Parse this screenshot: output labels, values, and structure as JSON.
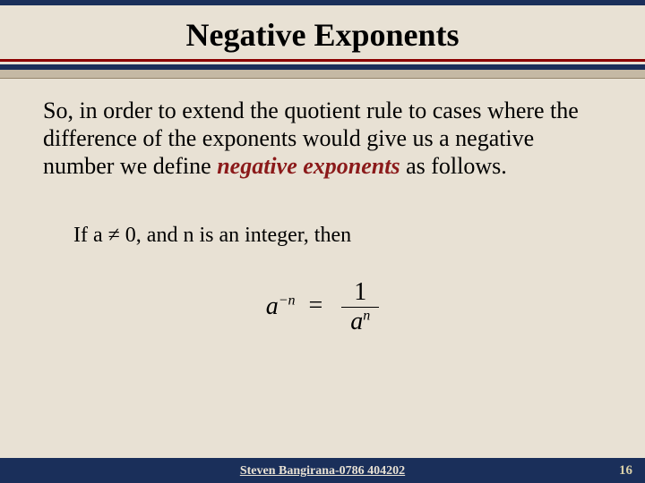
{
  "colors": {
    "background": "#e8e1d4",
    "navy": "#1a2f5a",
    "darkred": "#8b0000",
    "emphasis": "#8b1a1a",
    "band": "#c5b9a4",
    "page_number": "#d8cfa8"
  },
  "header": {
    "title": "Negative Exponents"
  },
  "body": {
    "para_part1": "So, in order to extend the quotient rule to cases where the difference of the exponents would give us a negative number we define ",
    "emphasis": "negative exponents",
    "para_part2": " as follows.",
    "condition": "If a ≠ 0, and n is an integer, then",
    "formula": {
      "lhs_base": "a",
      "lhs_exp": "−n",
      "eq": "=",
      "numerator": "1",
      "den_base": "a",
      "den_exp": "n"
    }
  },
  "footer": {
    "author": "Steven Bangirana-0786 404202",
    "page": "16"
  }
}
